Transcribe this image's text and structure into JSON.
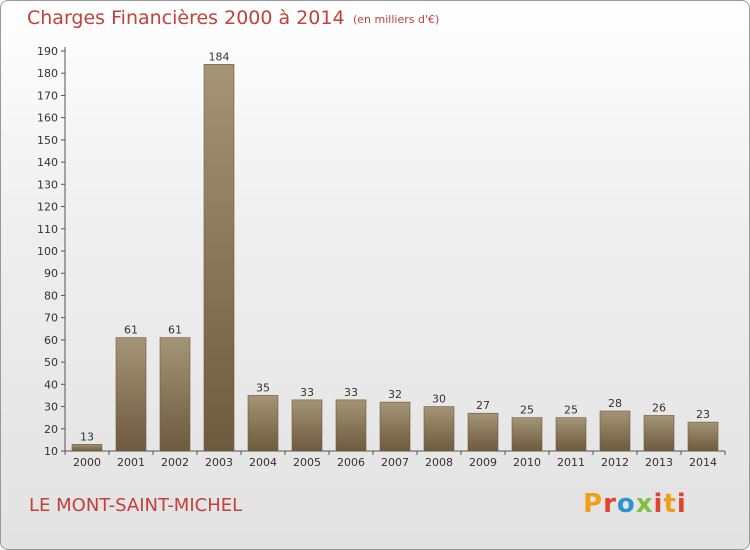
{
  "header": {
    "title": "Charges Financières 2000 à 2014",
    "subtitle": "(en milliers d'€)"
  },
  "footer": {
    "location": "LE MONT-SAINT-MICHEL",
    "logo_text": "Proxiti"
  },
  "colors": {
    "title": "#c2413a",
    "bar_top": "#a59475",
    "bar_bottom": "#6e5a3e",
    "logo": [
      "#f0a018",
      "#e2452d",
      "#2f92d0",
      "#7cc142",
      "#e2452d",
      "#f0a018",
      "#e2452d"
    ]
  },
  "chart_data": {
    "type": "bar",
    "title": "Charges Financières 2000 à 2014",
    "subtitle": "(en milliers d'€)",
    "xlabel": "",
    "ylabel": "",
    "categories": [
      "2000",
      "2001",
      "2002",
      "2003",
      "2004",
      "2005",
      "2006",
      "2007",
      "2008",
      "2009",
      "2010",
      "2011",
      "2012",
      "2013",
      "2014"
    ],
    "values": [
      13,
      61,
      61,
      184,
      35,
      33,
      33,
      32,
      30,
      27,
      25,
      25,
      28,
      26,
      23
    ],
    "ylim": [
      10,
      190
    ],
    "yticks": [
      10,
      20,
      30,
      40,
      50,
      60,
      70,
      80,
      90,
      100,
      110,
      120,
      130,
      140,
      150,
      160,
      170,
      180,
      190
    ],
    "grid": false,
    "data_labels": true
  }
}
